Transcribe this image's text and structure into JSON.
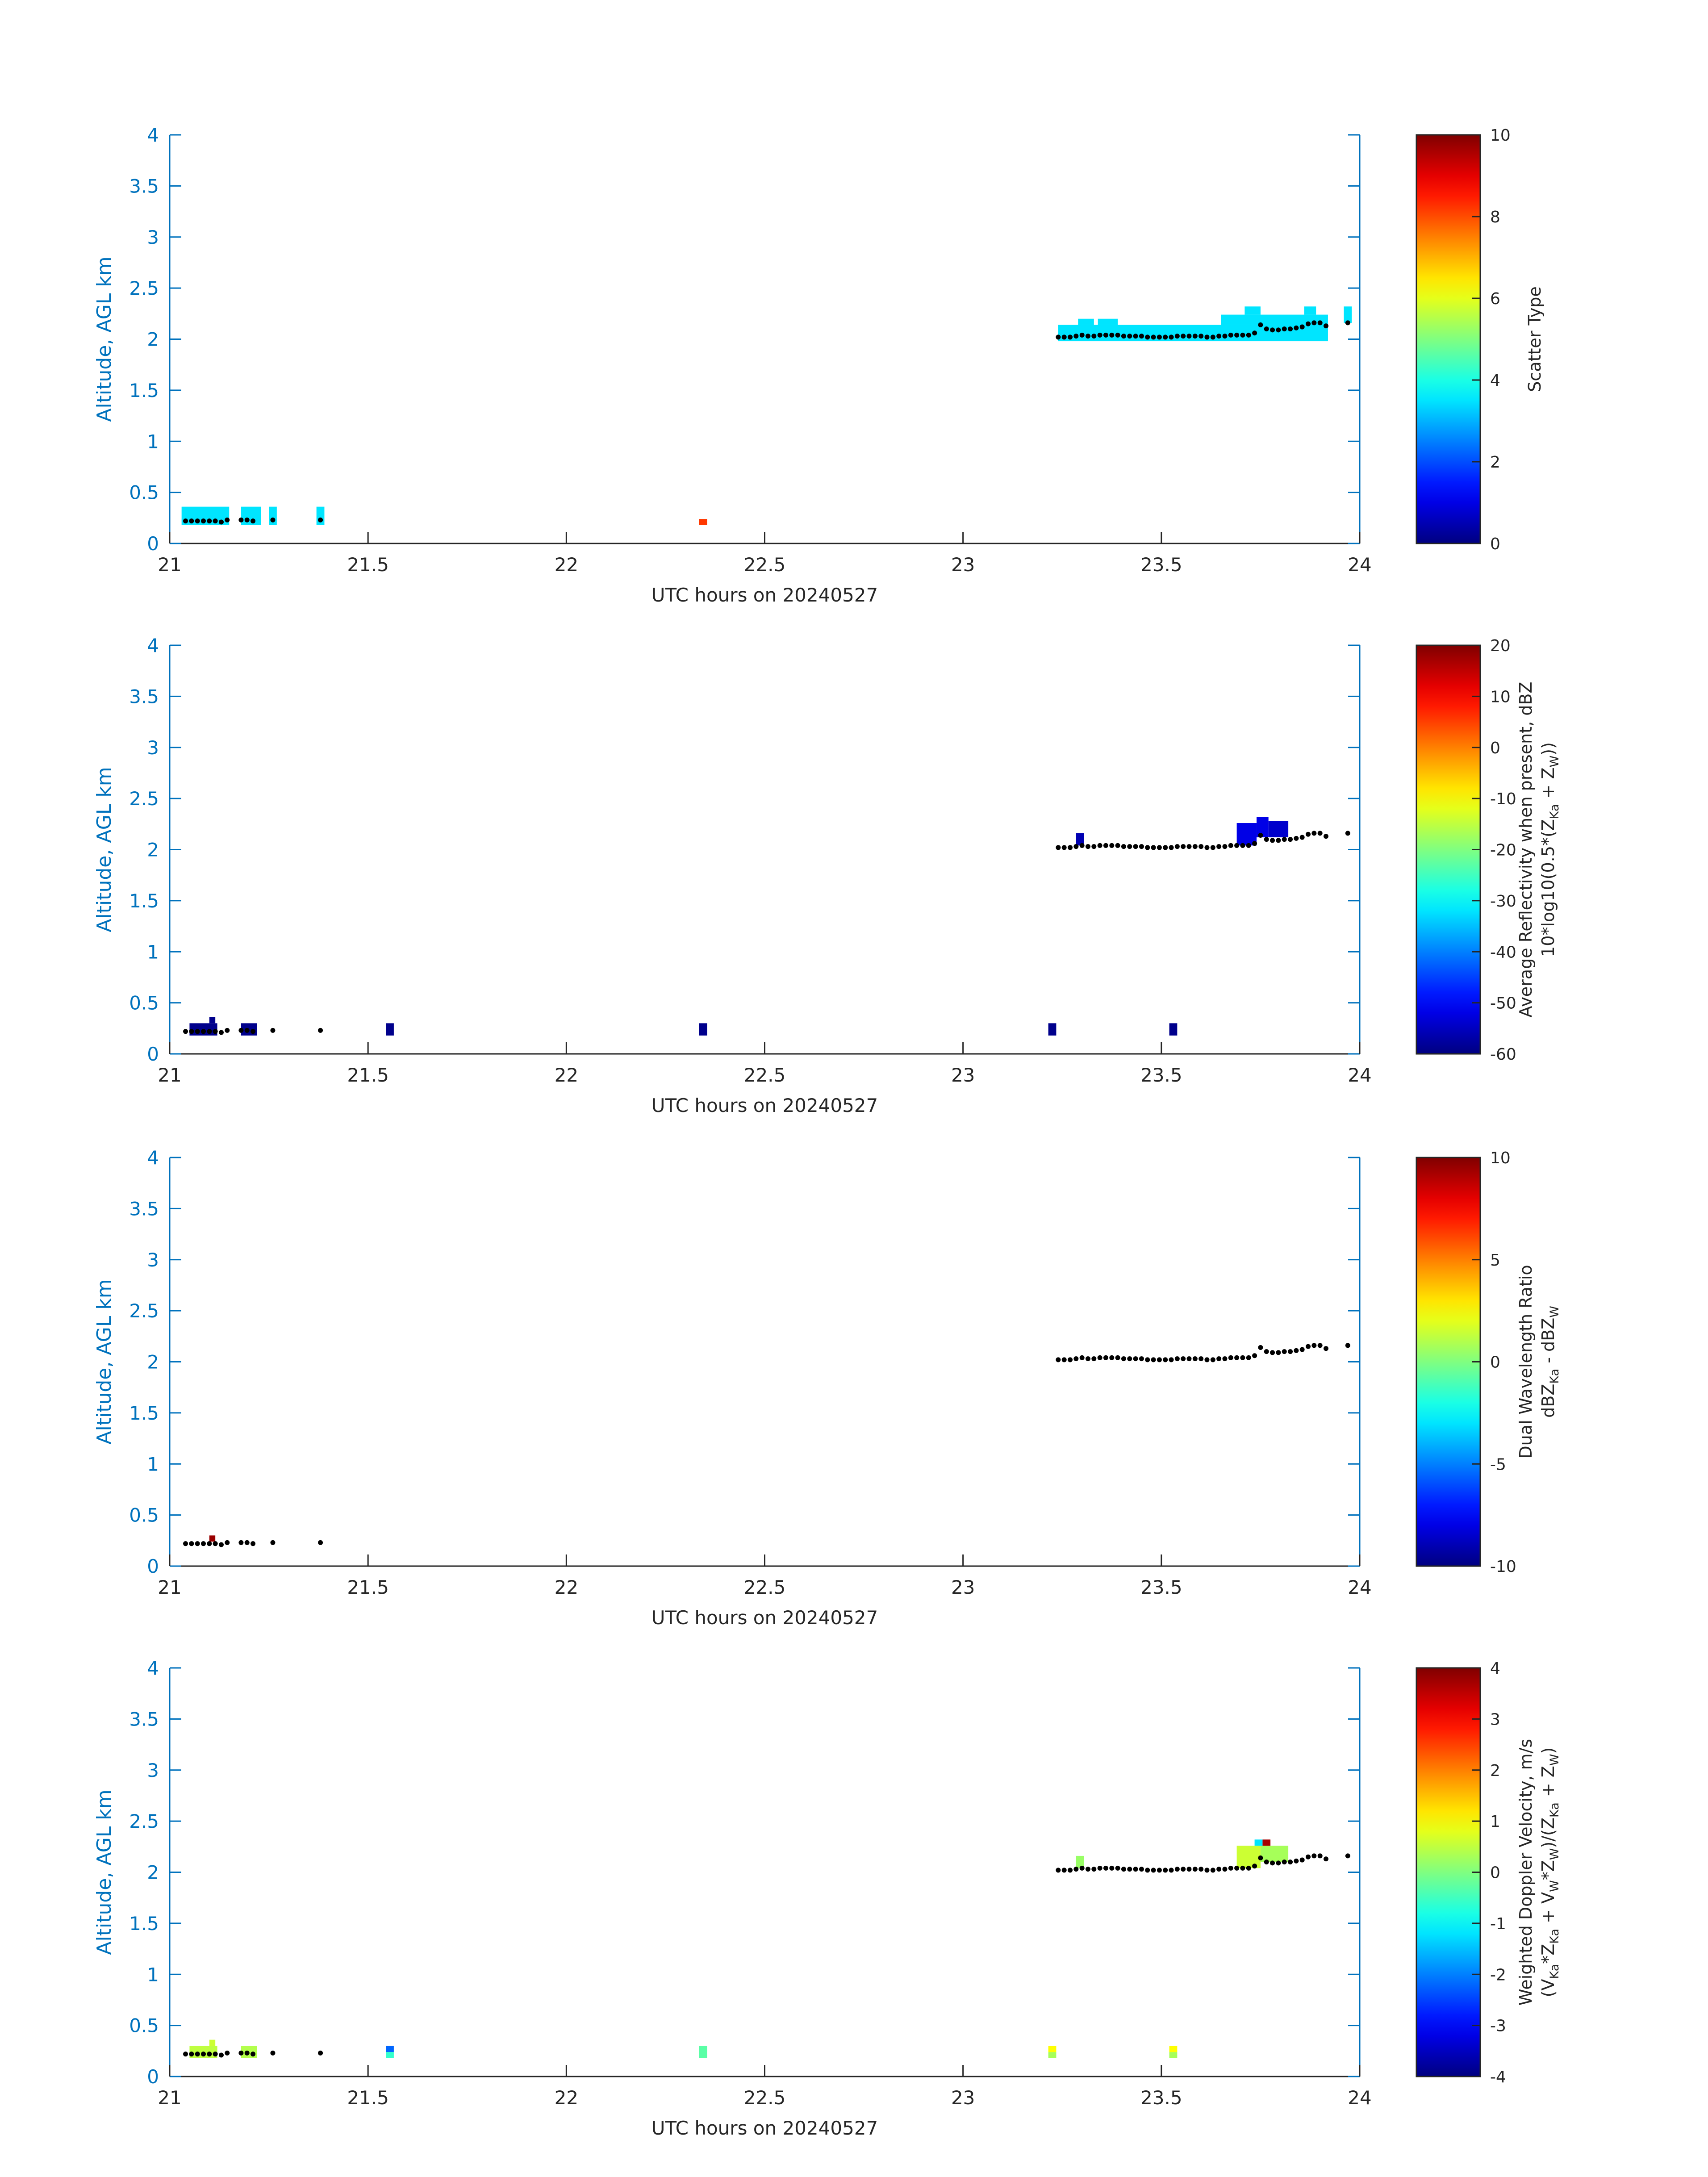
{
  "chart_data": [
    {
      "type": "heatmap",
      "x_range": [
        21,
        24
      ],
      "y_range": [
        0,
        4
      ],
      "x_ticks": [
        "21",
        "21.5",
        "22",
        "22.5",
        "23",
        "23.5",
        "24"
      ],
      "y_ticks": [
        "0",
        "0.5",
        "1",
        "1.5",
        "2",
        "2.5",
        "3",
        "3.5",
        "4"
      ],
      "xlabel": "UTC hours on 20240527",
      "ylabel": "Altitude, AGL km",
      "colorbar": {
        "range": [
          0,
          10
        ],
        "ticks": [
          "0",
          "2",
          "4",
          "6",
          "8",
          "10"
        ],
        "label_lines": [
          "Scatter Type"
        ]
      },
      "cells": [
        {
          "t0": 21.03,
          "t1": 21.15,
          "z0": 0.18,
          "z1": 0.36,
          "v": 3.5
        },
        {
          "t0": 21.18,
          "t1": 21.23,
          "z0": 0.18,
          "z1": 0.36,
          "v": 3.5
        },
        {
          "t0": 21.25,
          "t1": 21.27,
          "z0": 0.18,
          "z1": 0.36,
          "v": 3.5
        },
        {
          "t0": 21.37,
          "t1": 21.39,
          "z0": 0.18,
          "z1": 0.36,
          "v": 3.5
        },
        {
          "t0": 22.335,
          "t1": 22.355,
          "z0": 0.18,
          "z1": 0.24,
          "v": 8.2
        },
        {
          "t0": 23.24,
          "t1": 23.92,
          "z0": 1.98,
          "z1": 2.14,
          "v": 3.5
        },
        {
          "t0": 23.29,
          "t1": 23.33,
          "z0": 2.14,
          "z1": 2.2,
          "v": 3.5
        },
        {
          "t0": 23.34,
          "t1": 23.39,
          "z0": 2.14,
          "z1": 2.2,
          "v": 3.5
        },
        {
          "t0": 23.65,
          "t1": 23.92,
          "z0": 2.14,
          "z1": 2.24,
          "v": 3.5
        },
        {
          "t0": 23.71,
          "t1": 23.75,
          "z0": 2.24,
          "z1": 2.32,
          "v": 3.5
        },
        {
          "t0": 23.86,
          "t1": 23.89,
          "z0": 2.24,
          "z1": 2.32,
          "v": 3.5
        },
        {
          "t0": 23.96,
          "t1": 23.98,
          "z0": 2.16,
          "z1": 2.32,
          "v": 3.5
        }
      ]
    },
    {
      "type": "heatmap",
      "x_range": [
        21,
        24
      ],
      "y_range": [
        0,
        4
      ],
      "x_ticks": [
        "21",
        "21.5",
        "22",
        "22.5",
        "23",
        "23.5",
        "24"
      ],
      "y_ticks": [
        "0",
        "0.5",
        "1",
        "1.5",
        "2",
        "2.5",
        "3",
        "3.5",
        "4"
      ],
      "xlabel": "UTC hours on 20240527",
      "ylabel": "Altitude, AGL km",
      "colorbar": {
        "range": [
          -60,
          20
        ],
        "ticks": [
          "-60",
          "-50",
          "-40",
          "-30",
          "-20",
          "-10",
          "0",
          "10",
          "20"
        ],
        "label_lines": [
          "Average Reflectivity when present, dBZ",
          "10*log10(0.5*(Z_Ka + Z_W))"
        ]
      },
      "cells": [
        {
          "t0": 21.05,
          "t1": 21.12,
          "z0": 0.18,
          "z1": 0.3,
          "v": -59
        },
        {
          "t0": 21.1,
          "t1": 21.115,
          "z0": 0.3,
          "z1": 0.36,
          "v": -59
        },
        {
          "t0": 21.18,
          "t1": 21.22,
          "z0": 0.18,
          "z1": 0.3,
          "v": -59
        },
        {
          "t0": 21.545,
          "t1": 21.565,
          "z0": 0.18,
          "z1": 0.3,
          "v": -59
        },
        {
          "t0": 22.335,
          "t1": 22.355,
          "z0": 0.18,
          "z1": 0.3,
          "v": -59
        },
        {
          "t0": 23.215,
          "t1": 23.235,
          "z0": 0.18,
          "z1": 0.3,
          "v": -59
        },
        {
          "t0": 23.52,
          "t1": 23.54,
          "z0": 0.18,
          "z1": 0.3,
          "v": -59
        },
        {
          "t0": 23.285,
          "t1": 23.305,
          "z0": 2.04,
          "z1": 2.16,
          "v": -56
        },
        {
          "t0": 23.69,
          "t1": 23.74,
          "z0": 2.04,
          "z1": 2.26,
          "v": -52
        },
        {
          "t0": 23.74,
          "t1": 23.77,
          "z0": 2.12,
          "z1": 2.32,
          "v": -52
        },
        {
          "t0": 23.77,
          "t1": 23.82,
          "z0": 2.12,
          "z1": 2.28,
          "v": -54
        }
      ]
    },
    {
      "type": "heatmap",
      "x_range": [
        21,
        24
      ],
      "y_range": [
        0,
        4
      ],
      "x_ticks": [
        "21",
        "21.5",
        "22",
        "22.5",
        "23",
        "23.5",
        "24"
      ],
      "y_ticks": [
        "0",
        "0.5",
        "1",
        "1.5",
        "2",
        "2.5",
        "3",
        "3.5",
        "4"
      ],
      "xlabel": "UTC hours on 20240527",
      "ylabel": "Altitude, AGL km",
      "colorbar": {
        "range": [
          -10,
          10
        ],
        "ticks": [
          "-10",
          "-5",
          "0",
          "5",
          "10"
        ],
        "label_lines": [
          "Dual Wavelength Ratio",
          "dBZ_Ka - dBZ_W"
        ]
      },
      "cells": [
        {
          "t0": 21.1,
          "t1": 21.115,
          "z0": 0.24,
          "z1": 0.3,
          "v": 9.5
        }
      ]
    },
    {
      "type": "heatmap",
      "x_range": [
        21,
        24
      ],
      "y_range": [
        0,
        4
      ],
      "x_ticks": [
        "21",
        "21.5",
        "22",
        "22.5",
        "23",
        "23.5",
        "24"
      ],
      "y_ticks": [
        "0",
        "0.5",
        "1",
        "1.5",
        "2",
        "2.5",
        "3",
        "3.5",
        "4"
      ],
      "xlabel": "UTC hours on 20240527",
      "ylabel": "Altitude, AGL km",
      "colorbar": {
        "range": [
          -4,
          4
        ],
        "ticks": [
          "-4",
          "-3",
          "-2",
          "-1",
          "0",
          "1",
          "2",
          "3",
          "4"
        ],
        "label_lines": [
          "Weighted Doppler Velocity, m/s",
          "(V_Ka*Z_Ka + V_W*Z_W)/(Z_Ka + Z_W)"
        ]
      },
      "cells": [
        {
          "t0": 21.05,
          "t1": 21.12,
          "z0": 0.18,
          "z1": 0.3,
          "v": 0.5
        },
        {
          "t0": 21.1,
          "t1": 21.115,
          "z0": 0.3,
          "z1": 0.36,
          "v": 0.6
        },
        {
          "t0": 21.18,
          "t1": 21.22,
          "z0": 0.18,
          "z1": 0.3,
          "v": 0.4
        },
        {
          "t0": 21.545,
          "t1": 21.565,
          "z0": 0.18,
          "z1": 0.24,
          "v": -0.6
        },
        {
          "t0": 21.545,
          "t1": 21.565,
          "z0": 0.24,
          "z1": 0.3,
          "v": -2.2
        },
        {
          "t0": 22.335,
          "t1": 22.355,
          "z0": 0.18,
          "z1": 0.3,
          "v": -0.3
        },
        {
          "t0": 23.215,
          "t1": 23.235,
          "z0": 0.18,
          "z1": 0.24,
          "v": 0.3
        },
        {
          "t0": 23.215,
          "t1": 23.235,
          "z0": 0.24,
          "z1": 0.3,
          "v": 1.0
        },
        {
          "t0": 23.52,
          "t1": 23.54,
          "z0": 0.18,
          "z1": 0.24,
          "v": 0.3
        },
        {
          "t0": 23.52,
          "t1": 23.54,
          "z0": 0.24,
          "z1": 0.3,
          "v": 1.0
        },
        {
          "t0": 23.285,
          "t1": 23.305,
          "z0": 2.04,
          "z1": 2.16,
          "v": 0.2
        },
        {
          "t0": 23.69,
          "t1": 23.75,
          "z0": 2.04,
          "z1": 2.26,
          "v": 0.6
        },
        {
          "t0": 23.75,
          "t1": 23.82,
          "z0": 2.1,
          "z1": 2.26,
          "v": 0.3
        },
        {
          "t0": 23.755,
          "t1": 23.775,
          "z0": 2.26,
          "z1": 2.32,
          "v": 3.7
        },
        {
          "t0": 23.735,
          "t1": 23.755,
          "z0": 2.26,
          "z1": 2.32,
          "v": -1.2
        }
      ]
    }
  ],
  "altitude_trace": [
    [
      21.04,
      0.22
    ],
    [
      21.055,
      0.22
    ],
    [
      21.07,
      0.22
    ],
    [
      21.085,
      0.22
    ],
    [
      21.1,
      0.22
    ],
    [
      21.115,
      0.22
    ],
    [
      21.13,
      0.21
    ],
    [
      21.145,
      0.23
    ],
    [
      21.18,
      0.23
    ],
    [
      21.195,
      0.23
    ],
    [
      21.21,
      0.22
    ],
    [
      21.26,
      0.23
    ],
    [
      21.38,
      0.23
    ],
    [
      23.24,
      2.02
    ],
    [
      23.255,
      2.02
    ],
    [
      23.27,
      2.02
    ],
    [
      23.285,
      2.03
    ],
    [
      23.3,
      2.04
    ],
    [
      23.315,
      2.03
    ],
    [
      23.33,
      2.03
    ],
    [
      23.345,
      2.04
    ],
    [
      23.36,
      2.04
    ],
    [
      23.375,
      2.04
    ],
    [
      23.39,
      2.04
    ],
    [
      23.405,
      2.03
    ],
    [
      23.42,
      2.03
    ],
    [
      23.435,
      2.03
    ],
    [
      23.45,
      2.03
    ],
    [
      23.465,
      2.02
    ],
    [
      23.48,
      2.02
    ],
    [
      23.495,
      2.02
    ],
    [
      23.51,
      2.02
    ],
    [
      23.525,
      2.02
    ],
    [
      23.54,
      2.03
    ],
    [
      23.555,
      2.03
    ],
    [
      23.57,
      2.03
    ],
    [
      23.585,
      2.03
    ],
    [
      23.6,
      2.03
    ],
    [
      23.615,
      2.02
    ],
    [
      23.63,
      2.02
    ],
    [
      23.645,
      2.03
    ],
    [
      23.66,
      2.03
    ],
    [
      23.675,
      2.04
    ],
    [
      23.69,
      2.04
    ],
    [
      23.705,
      2.04
    ],
    [
      23.72,
      2.04
    ],
    [
      23.735,
      2.06
    ],
    [
      23.75,
      2.14
    ],
    [
      23.765,
      2.1
    ],
    [
      23.78,
      2.09
    ],
    [
      23.795,
      2.09
    ],
    [
      23.81,
      2.1
    ],
    [
      23.825,
      2.1
    ],
    [
      23.84,
      2.11
    ],
    [
      23.855,
      2.12
    ],
    [
      23.87,
      2.15
    ],
    [
      23.885,
      2.16
    ],
    [
      23.9,
      2.16
    ],
    [
      23.915,
      2.13
    ],
    [
      23.97,
      2.16
    ]
  ]
}
